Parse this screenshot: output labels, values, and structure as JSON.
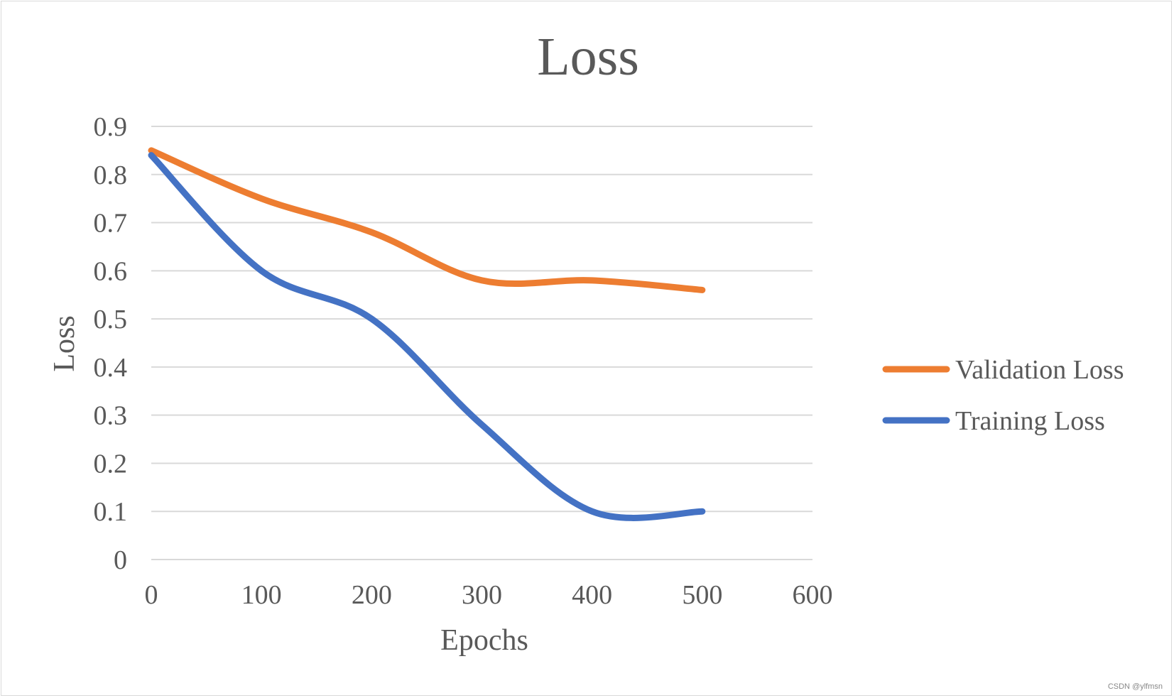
{
  "chart_data": {
    "type": "line",
    "title": "Loss",
    "xlabel": "Epochs",
    "ylabel": "Loss",
    "xlim": [
      0,
      600
    ],
    "ylim": [
      0,
      0.9
    ],
    "xticks": [
      "0",
      "100",
      "200",
      "300",
      "400",
      "500",
      "600"
    ],
    "yticks": [
      "0",
      "0.1",
      "0.2",
      "0.3",
      "0.4",
      "0.5",
      "0.6",
      "0.7",
      "0.8",
      "0.9"
    ],
    "grid": true,
    "legend_position": "right",
    "x": [
      0,
      100,
      200,
      300,
      400,
      500
    ],
    "series": [
      {
        "name": "Validation Loss",
        "color": "#ED7D31",
        "values": [
          0.85,
          0.75,
          0.68,
          0.58,
          0.58,
          0.56
        ]
      },
      {
        "name": "Training Loss",
        "color": "#4472C4",
        "values": [
          0.84,
          0.6,
          0.5,
          0.28,
          0.1,
          0.1
        ]
      }
    ]
  },
  "watermark": "CSDN @ylfmsn"
}
